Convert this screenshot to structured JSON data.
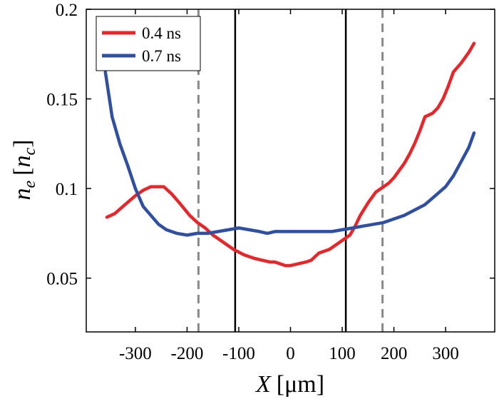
{
  "chart_data": {
    "type": "line",
    "title": "",
    "xlabel": {
      "var": "X",
      "unit": "[μm]"
    },
    "ylabel": {
      "var": "n",
      "sub": "e",
      "open": "[",
      "var2": "n",
      "sub2": "c",
      "close": "]"
    },
    "xlim": [
      -395,
      395
    ],
    "ylim": [
      0.02,
      0.2
    ],
    "xticks": [
      -300,
      -200,
      -100,
      0,
      100,
      200,
      300
    ],
    "xtick_labels": [
      "-300",
      "-200",
      "-100",
      "0",
      "100",
      "200",
      "300"
    ],
    "yticks": [
      0.05,
      0.1,
      0.15,
      0.2
    ],
    "ytick_labels": [
      "0.05",
      "0.1",
      "0.15",
      "0.2"
    ],
    "grid": false,
    "legend_position": "top-left",
    "series": [
      {
        "name": "0.4 ns",
        "color": "#e8262a",
        "x": [
          -355,
          -340,
          -320,
          -300,
          -285,
          -270,
          -260,
          -245,
          -230,
          -215,
          -195,
          -180,
          -165,
          -150,
          -130,
          -110,
          -90,
          -70,
          -55,
          -40,
          -30,
          -20,
          -10,
          0,
          15,
          30,
          40,
          55,
          75,
          90,
          105,
          115,
          125,
          135,
          150,
          165,
          180,
          190,
          200,
          210,
          220,
          230,
          240,
          250,
          260,
          275,
          285,
          295,
          305,
          315,
          330,
          345,
          355
        ],
        "y": [
          0.084,
          0.086,
          0.091,
          0.096,
          0.099,
          0.101,
          0.101,
          0.101,
          0.097,
          0.092,
          0.085,
          0.081,
          0.078,
          0.074,
          0.07,
          0.066,
          0.063,
          0.061,
          0.06,
          0.059,
          0.059,
          0.058,
          0.057,
          0.057,
          0.058,
          0.059,
          0.06,
          0.064,
          0.066,
          0.069,
          0.072,
          0.074,
          0.079,
          0.085,
          0.092,
          0.098,
          0.101,
          0.103,
          0.106,
          0.11,
          0.114,
          0.119,
          0.125,
          0.132,
          0.14,
          0.142,
          0.145,
          0.15,
          0.157,
          0.165,
          0.17,
          0.176,
          0.181
        ]
      },
      {
        "name": "0.7 ns",
        "color": "#2e4fa2",
        "x": [
          -358,
          -345,
          -330,
          -315,
          -300,
          -285,
          -270,
          -255,
          -240,
          -220,
          -200,
          -180,
          -160,
          -140,
          -120,
          -100,
          -80,
          -60,
          -45,
          -30,
          -15,
          0,
          20,
          40,
          60,
          80,
          100,
          120,
          140,
          160,
          180,
          200,
          220,
          240,
          260,
          280,
          300,
          315,
          330,
          345,
          355
        ],
        "y": [
          0.165,
          0.14,
          0.125,
          0.113,
          0.1,
          0.09,
          0.085,
          0.08,
          0.077,
          0.075,
          0.074,
          0.075,
          0.075,
          0.076,
          0.077,
          0.078,
          0.077,
          0.076,
          0.075,
          0.076,
          0.076,
          0.076,
          0.076,
          0.076,
          0.076,
          0.076,
          0.077,
          0.078,
          0.079,
          0.08,
          0.081,
          0.083,
          0.085,
          0.088,
          0.091,
          0.096,
          0.101,
          0.107,
          0.115,
          0.123,
          0.131
        ]
      }
    ],
    "vertical_lines": [
      {
        "x": -178,
        "style": "dashed",
        "color": "#888888"
      },
      {
        "x": -107,
        "style": "solid",
        "color": "#000000"
      },
      {
        "x": 107,
        "style": "solid",
        "color": "#000000"
      },
      {
        "x": 178,
        "style": "dashed",
        "color": "#888888"
      }
    ]
  }
}
